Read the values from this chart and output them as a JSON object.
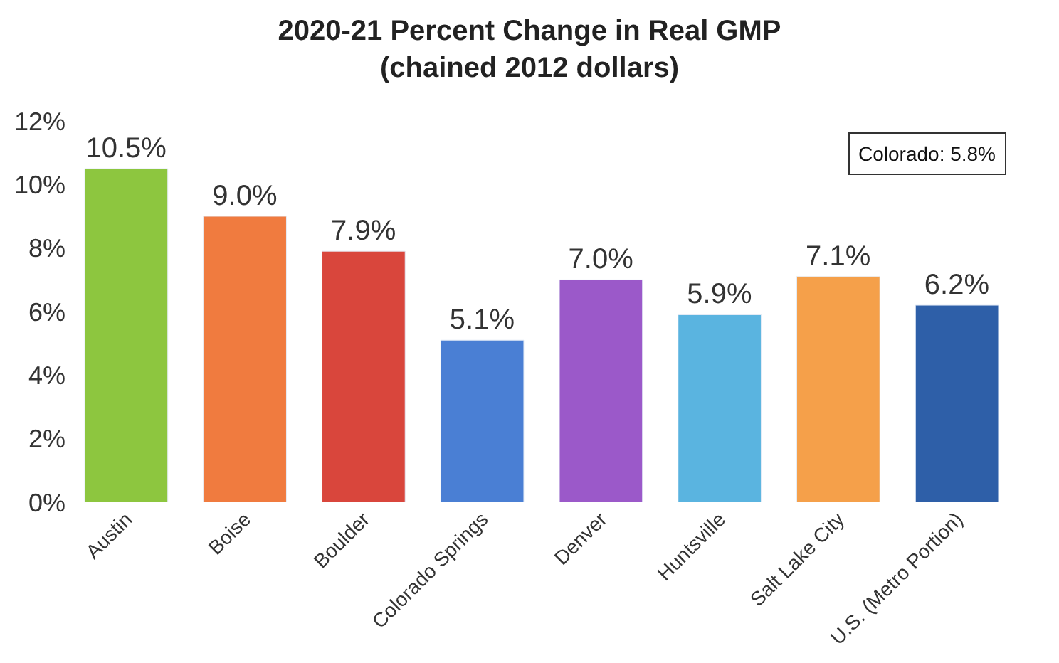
{
  "chart_data": {
    "type": "bar",
    "title": "2020-21 Percent Change in Real GMP\n(chained 2012 dollars)",
    "categories": [
      "Austin",
      "Boise",
      "Boulder",
      "Colorado Springs",
      "Denver",
      "Huntsville",
      "Salt Lake City",
      "U.S. (Metro Portion)"
    ],
    "values": [
      10.5,
      9.0,
      7.9,
      5.1,
      7.0,
      5.9,
      7.1,
      6.2
    ],
    "value_labels": [
      "10.5%",
      "9.0%",
      "7.9%",
      "5.1%",
      "7.0%",
      "5.9%",
      "7.1%",
      "6.2%"
    ],
    "colors": [
      "#8dc63f",
      "#f07b3f",
      "#d9463c",
      "#4a7fd4",
      "#9b59c9",
      "#5ab4e0",
      "#f5a04a",
      "#2e5fa8"
    ],
    "ylim": [
      0,
      12
    ],
    "yticks": [
      {
        "value": 0,
        "label": "0%"
      },
      {
        "value": 2,
        "label": "2%"
      },
      {
        "value": 4,
        "label": "4%"
      },
      {
        "value": 6,
        "label": "6%"
      },
      {
        "value": 8,
        "label": "8%"
      },
      {
        "value": 10,
        "label": "10%"
      },
      {
        "value": 12,
        "label": "12%"
      }
    ],
    "annotations": [
      "Colorado: 5.8%"
    ],
    "legend": false
  }
}
